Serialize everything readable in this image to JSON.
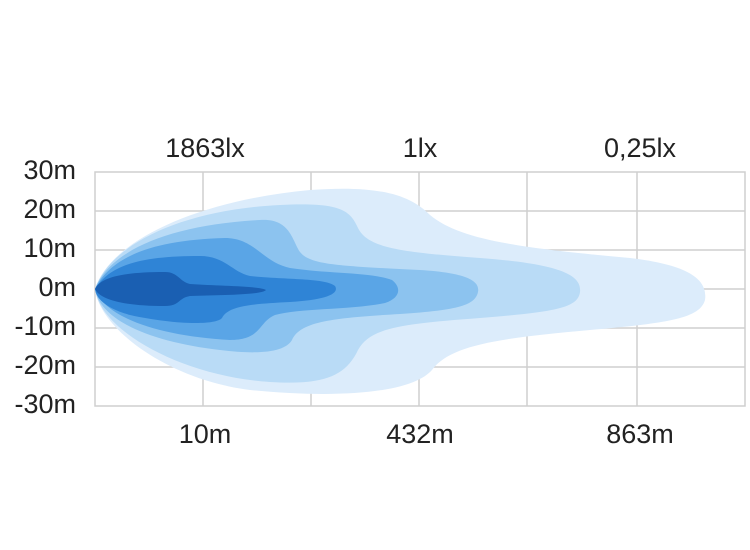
{
  "y_axis": {
    "labels": [
      "30m",
      "20m",
      "10m",
      "0m",
      "-10m",
      "-20m",
      "-30m"
    ]
  },
  "top_labels": [
    "1863lx",
    "1lx",
    "0,25lx"
  ],
  "bottom_labels": [
    "10m",
    "432m",
    "863m"
  ]
}
